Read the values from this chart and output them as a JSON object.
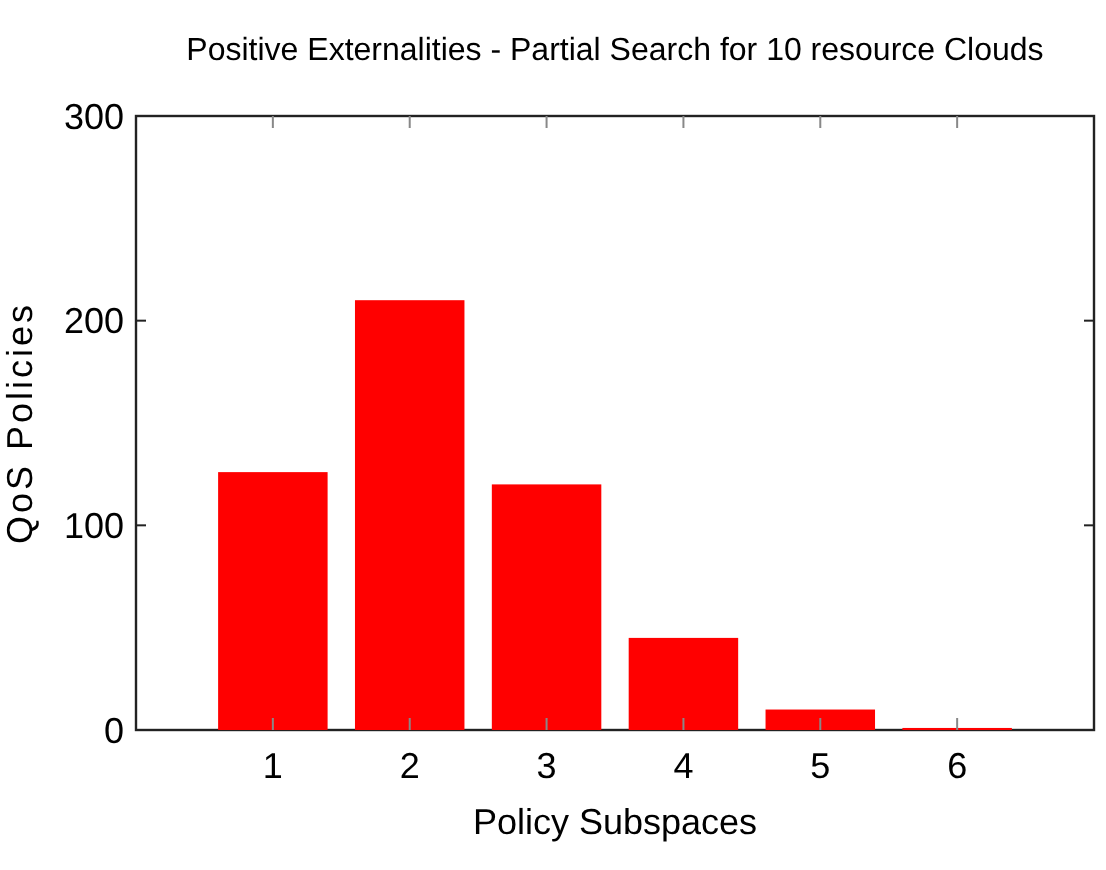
{
  "chart_data": {
    "type": "bar",
    "title": "Positive Externalities - Partial Search for 10 resource Clouds",
    "xlabel": "Policy Subspaces",
    "ylabel": "QoS Policies",
    "categories": [
      "1",
      "2",
      "3",
      "4",
      "5",
      "6"
    ],
    "values": [
      126,
      210,
      120,
      45,
      10,
      1
    ],
    "color": "#ff0000",
    "ylim": [
      0,
      300
    ],
    "yticks": [
      0,
      100,
      200,
      300
    ],
    "grid": false
  }
}
